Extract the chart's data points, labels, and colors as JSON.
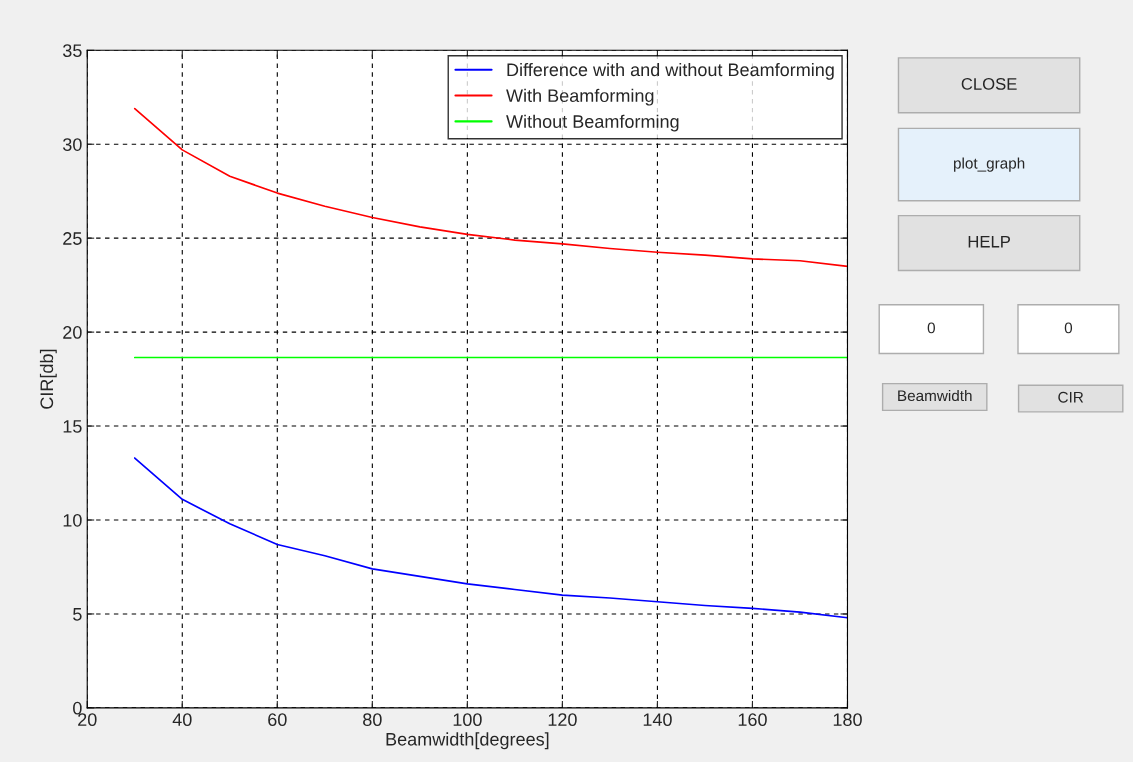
{
  "chart_data": {
    "type": "line",
    "xlabel": "Beamwidth[degrees]",
    "ylabel": "CIR[db]",
    "x": [
      30,
      40,
      50,
      60,
      70,
      80,
      90,
      100,
      110,
      120,
      130,
      140,
      150,
      160,
      170,
      180
    ],
    "series": [
      {
        "name": "Difference with and without Beamforming",
        "color": "#0000ff",
        "values": [
          13.3,
          11.1,
          9.8,
          8.7,
          8.1,
          7.4,
          7.0,
          6.6,
          6.3,
          6.0,
          5.85,
          5.65,
          5.45,
          5.3,
          5.1,
          4.8
        ]
      },
      {
        "name": "With Beamforming",
        "color": "#ff0000",
        "values": [
          31.9,
          29.7,
          28.3,
          27.4,
          26.7,
          26.1,
          25.6,
          25.2,
          24.9,
          24.7,
          24.45,
          24.25,
          24.1,
          23.9,
          23.8,
          23.5
        ]
      },
      {
        "name": "Without Beamforming",
        "color": "#00ff00",
        "values": [
          18.65,
          18.65,
          18.65,
          18.65,
          18.65,
          18.65,
          18.65,
          18.65,
          18.65,
          18.65,
          18.65,
          18.65,
          18.65,
          18.65,
          18.65,
          18.65
        ]
      }
    ],
    "xlim": [
      20,
      180
    ],
    "xticks": [
      20,
      40,
      60,
      80,
      100,
      120,
      140,
      160,
      180
    ],
    "ylim": [
      0,
      35
    ],
    "yticks": [
      0,
      5,
      10,
      15,
      20,
      25,
      30,
      35
    ],
    "grid": true,
    "legend": "top right",
    "marker": "none",
    "line_style": "solid",
    "annotations": [
      "CLOSE",
      "plot_graph",
      "HELP",
      "0",
      "0",
      "Beamwidth",
      "CIR"
    ]
  }
}
